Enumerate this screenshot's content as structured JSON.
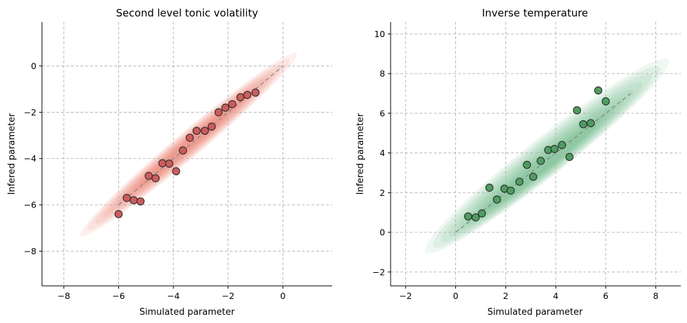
{
  "chart_data": [
    {
      "type": "scatter",
      "title": "Second level tonic volatility",
      "xlabel": "Simulated parameter",
      "ylabel": "Infered parameter",
      "xlim": [
        -8.8,
        1.8
      ],
      "ylim": [
        -9.5,
        1.9
      ],
      "xticks": [
        -8,
        -6,
        -4,
        -2,
        0
      ],
      "yticks": [
        -8,
        -6,
        -4,
        -2,
        0
      ],
      "xtick_labels": [
        "−8",
        "−6",
        "−4",
        "−2",
        "0"
      ],
      "ytick_labels": [
        "−8",
        "−6",
        "−4",
        "−2",
        "0"
      ],
      "grid": true,
      "identity_line": [
        [
          -6,
          -6
        ],
        [
          0,
          0
        ]
      ],
      "density_band": {
        "x_range": [
          -7.4,
          0.5
        ],
        "offset": 0.05,
        "color": "#e8553a"
      },
      "marker_color": "#cd5c5c",
      "points": [
        {
          "x": -6.0,
          "y": -6.4
        },
        {
          "x": -5.7,
          "y": -5.7
        },
        {
          "x": -5.45,
          "y": -5.8
        },
        {
          "x": -5.2,
          "y": -5.85
        },
        {
          "x": -4.9,
          "y": -4.75
        },
        {
          "x": -4.65,
          "y": -4.85
        },
        {
          "x": -4.4,
          "y": -4.2
        },
        {
          "x": -4.15,
          "y": -4.22
        },
        {
          "x": -3.9,
          "y": -4.55
        },
        {
          "x": -3.65,
          "y": -3.65
        },
        {
          "x": -3.4,
          "y": -3.1
        },
        {
          "x": -3.15,
          "y": -2.8
        },
        {
          "x": -2.85,
          "y": -2.8
        },
        {
          "x": -2.6,
          "y": -2.62
        },
        {
          "x": -2.35,
          "y": -2.0
        },
        {
          "x": -2.1,
          "y": -1.8
        },
        {
          "x": -1.85,
          "y": -1.65
        },
        {
          "x": -1.55,
          "y": -1.35
        },
        {
          "x": -1.3,
          "y": -1.25
        },
        {
          "x": -1.0,
          "y": -1.15
        }
      ]
    },
    {
      "type": "scatter",
      "title": "Inverse temperature",
      "xlabel": "Simulated parameter",
      "ylabel": "Infered parameter",
      "xlim": [
        -2.6,
        9.0
      ],
      "ylim": [
        -2.7,
        10.6
      ],
      "xticks": [
        -2,
        0,
        2,
        4,
        6,
        8
      ],
      "yticks": [
        -2,
        0,
        2,
        4,
        6,
        8,
        10
      ],
      "xtick_labels": [
        "−2",
        "0",
        "2",
        "4",
        "6",
        "8"
      ],
      "ytick_labels": [
        "−2",
        "0",
        "2",
        "4",
        "6",
        "8",
        "10"
      ],
      "grid": true,
      "identity_line": [
        [
          0,
          0
        ],
        [
          7,
          7
        ]
      ],
      "density_band": {
        "x_range": [
          -1.2,
          8.5
        ],
        "offset": 0.2,
        "color": "#3fa85a"
      },
      "marker_color": "#4f9c62",
      "points": [
        {
          "x": 0.5,
          "y": 0.8
        },
        {
          "x": 0.8,
          "y": 0.75
        },
        {
          "x": 1.05,
          "y": 0.95
        },
        {
          "x": 1.35,
          "y": 2.25
        },
        {
          "x": 1.65,
          "y": 1.65
        },
        {
          "x": 1.95,
          "y": 2.2
        },
        {
          "x": 2.2,
          "y": 2.1
        },
        {
          "x": 2.55,
          "y": 2.55
        },
        {
          "x": 2.85,
          "y": 3.4
        },
        {
          "x": 3.1,
          "y": 2.8
        },
        {
          "x": 3.4,
          "y": 3.6
        },
        {
          "x": 3.7,
          "y": 4.15
        },
        {
          "x": 3.95,
          "y": 4.2
        },
        {
          "x": 4.25,
          "y": 4.4
        },
        {
          "x": 4.55,
          "y": 3.8
        },
        {
          "x": 4.85,
          "y": 6.15
        },
        {
          "x": 5.1,
          "y": 5.45
        },
        {
          "x": 5.4,
          "y": 5.5
        },
        {
          "x": 5.7,
          "y": 7.15
        },
        {
          "x": 6.0,
          "y": 6.6
        }
      ]
    }
  ]
}
